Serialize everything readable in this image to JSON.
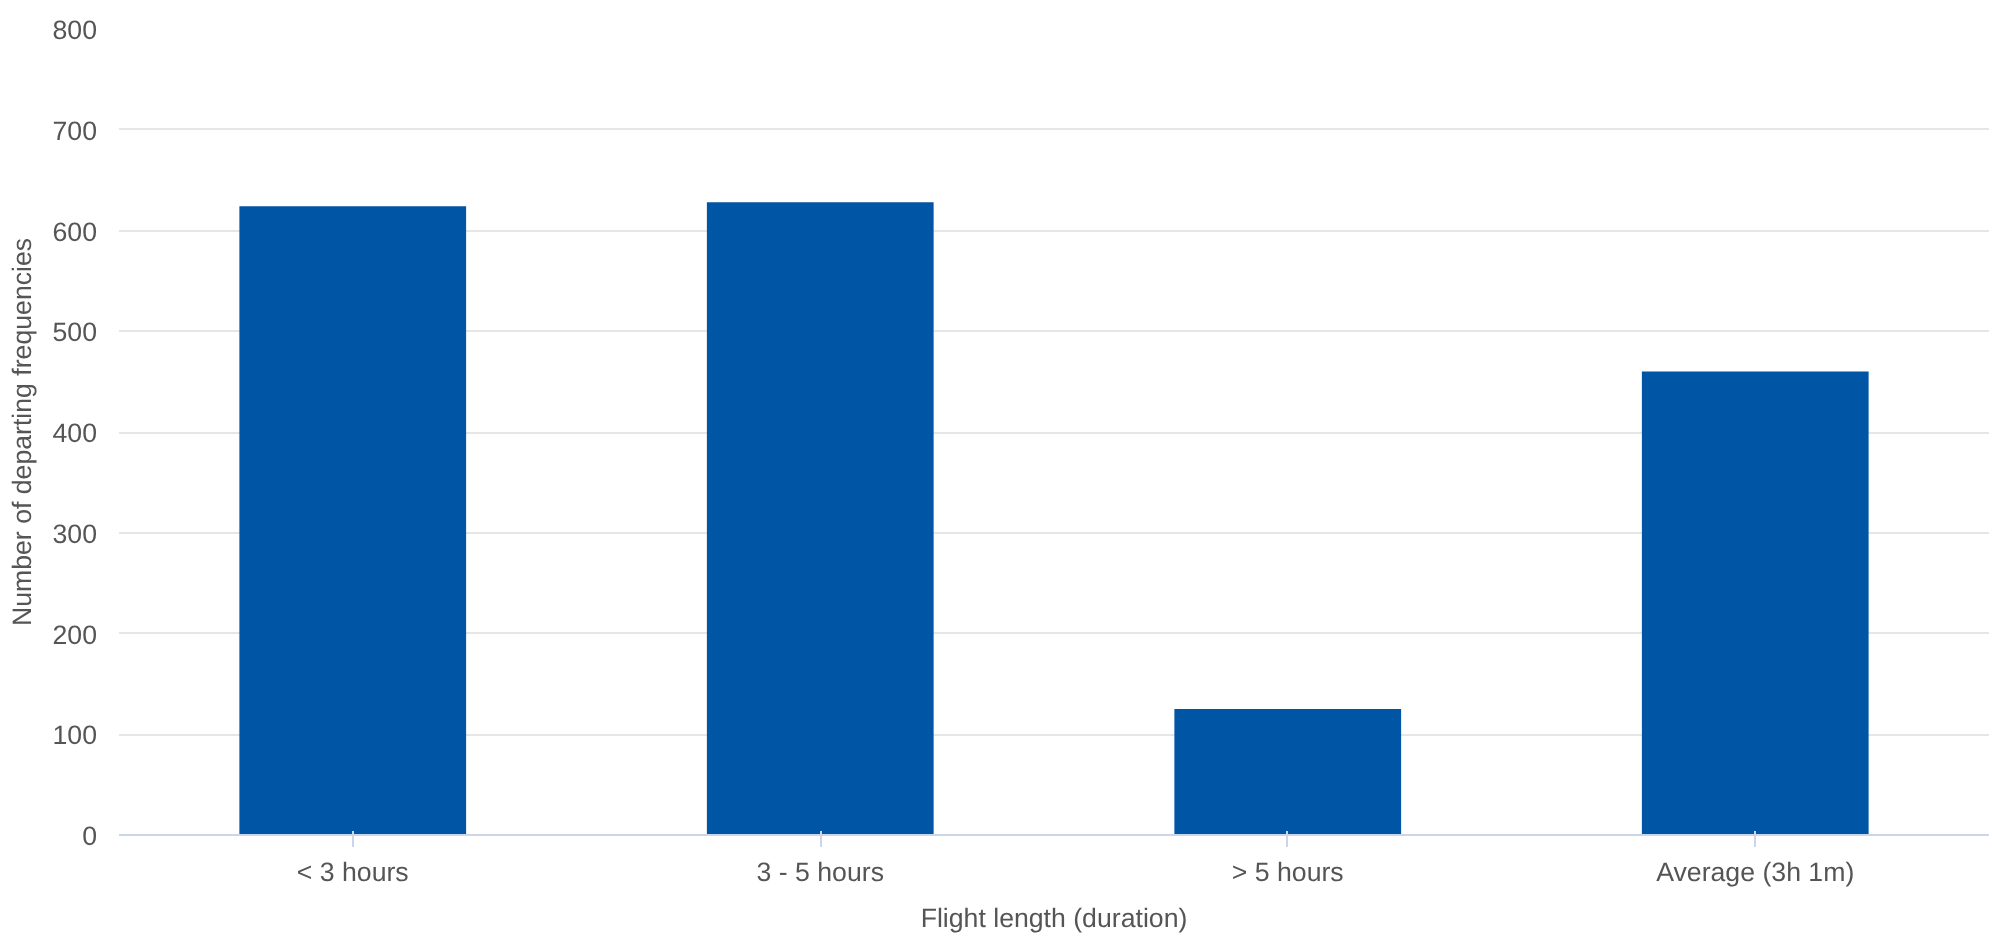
{
  "chart_data": {
    "type": "bar",
    "xlabel": "Flight length (duration)",
    "ylabel": "Number of departing frequencies",
    "categories": [
      "< 3 hours",
      "3 - 5 hours",
      "> 5 hours",
      "Average (3h 1m)"
    ],
    "values": [
      624,
      628,
      125,
      460
    ],
    "color": "#0055a5",
    "ylim": [
      0,
      800
    ],
    "yticks": [
      0,
      100,
      200,
      300,
      400,
      500,
      600,
      700,
      800
    ],
    "grid": "y"
  }
}
